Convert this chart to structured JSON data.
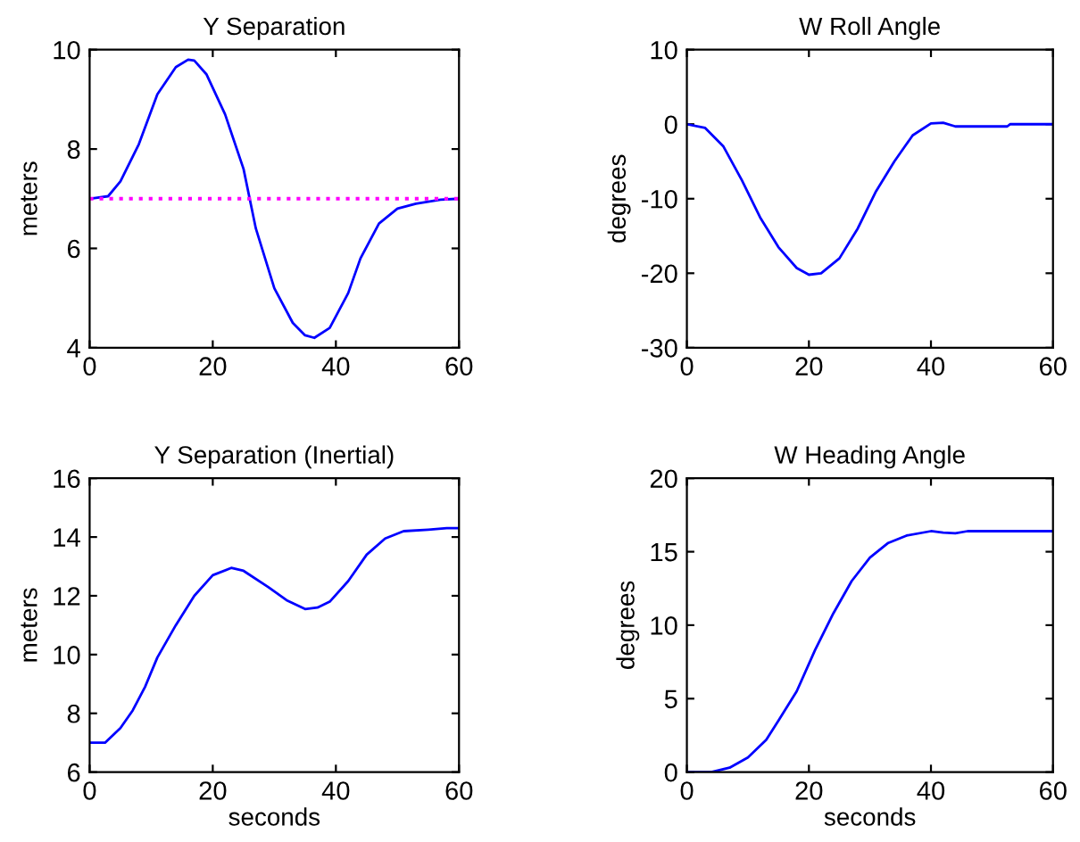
{
  "chart_data": [
    {
      "type": "line",
      "title": "Y Separation",
      "ylabel": "meters",
      "x": [
        0,
        3,
        5,
        8,
        11,
        14,
        16,
        17,
        19,
        22,
        25,
        27,
        30,
        33,
        35,
        36.5,
        39,
        42,
        44,
        47,
        50,
        53,
        57,
        60
      ],
      "series": [
        {
          "color": "#0000ff",
          "values": [
            7.0,
            7.05,
            7.35,
            8.1,
            9.1,
            9.65,
            9.8,
            9.78,
            9.5,
            8.7,
            7.6,
            6.4,
            5.2,
            4.5,
            4.25,
            4.2,
            4.4,
            5.1,
            5.8,
            6.5,
            6.8,
            6.9,
            6.98,
            7.0
          ]
        }
      ],
      "ref_lines": [
        {
          "axis": "y",
          "value": 7,
          "color": "#ff00ff",
          "line_style": "dotted"
        }
      ],
      "xlim": [
        0,
        60
      ],
      "xticks": [
        0,
        20,
        40,
        60
      ],
      "ylim": [
        4,
        10
      ],
      "yticks": [
        4,
        6,
        8,
        10
      ],
      "grid": false,
      "legend": false
    },
    {
      "type": "line",
      "title": "W Roll Angle",
      "ylabel": "degrees",
      "x": [
        0,
        3,
        6,
        9,
        12,
        15,
        18,
        20,
        22,
        25,
        28,
        31,
        34,
        37,
        40,
        42,
        44,
        50,
        52.5,
        53,
        60
      ],
      "series": [
        {
          "color": "#0000ff",
          "values": [
            0,
            -0.5,
            -3,
            -7.5,
            -12.5,
            -16.5,
            -19.3,
            -20.2,
            -20,
            -18,
            -14,
            -9,
            -5,
            -1.5,
            0.1,
            0.2,
            -0.3,
            -0.3,
            -0.3,
            0,
            0
          ]
        }
      ],
      "xlim": [
        0,
        60
      ],
      "xticks": [
        0,
        20,
        40,
        60
      ],
      "ylim": [
        -30,
        10
      ],
      "yticks": [
        -30,
        -20,
        -10,
        0,
        10
      ],
      "grid": false,
      "legend": false
    },
    {
      "type": "line",
      "title": "Y Separation (Inertial)",
      "xlabel": "seconds",
      "ylabel": "meters",
      "x": [
        0,
        2.5,
        5,
        7,
        9,
        11,
        14,
        17,
        20,
        23,
        25,
        29,
        32,
        35,
        37,
        39,
        42,
        45,
        48,
        51,
        55,
        58,
        60
      ],
      "series": [
        {
          "color": "#0000ff",
          "values": [
            7.0,
            7.0,
            7.5,
            8.1,
            8.9,
            9.9,
            11.0,
            12.0,
            12.7,
            12.95,
            12.85,
            12.3,
            11.85,
            11.55,
            11.6,
            11.8,
            12.5,
            13.4,
            13.95,
            14.2,
            14.25,
            14.3,
            14.3
          ]
        }
      ],
      "xlim": [
        0,
        60
      ],
      "xticks": [
        0,
        20,
        40,
        60
      ],
      "ylim": [
        6,
        16
      ],
      "yticks": [
        6,
        8,
        10,
        12,
        14,
        16
      ],
      "grid": false,
      "legend": false
    },
    {
      "type": "line",
      "title": "W Heading Angle",
      "xlabel": "seconds",
      "ylabel": "degrees",
      "x": [
        0,
        4,
        7,
        10,
        13,
        15,
        18,
        21,
        24,
        27,
        30,
        33,
        36,
        40,
        42,
        44,
        46,
        60
      ],
      "series": [
        {
          "color": "#0000ff",
          "values": [
            0,
            0,
            0.3,
            1.0,
            2.2,
            3.5,
            5.5,
            8.3,
            10.8,
            13.0,
            14.6,
            15.6,
            16.1,
            16.4,
            16.3,
            16.25,
            16.4,
            16.4
          ]
        }
      ],
      "xlim": [
        0,
        60
      ],
      "xticks": [
        0,
        20,
        40,
        60
      ],
      "ylim": [
        0,
        20
      ],
      "yticks": [
        0,
        5,
        10,
        15,
        20
      ],
      "grid": false,
      "legend": false
    }
  ]
}
